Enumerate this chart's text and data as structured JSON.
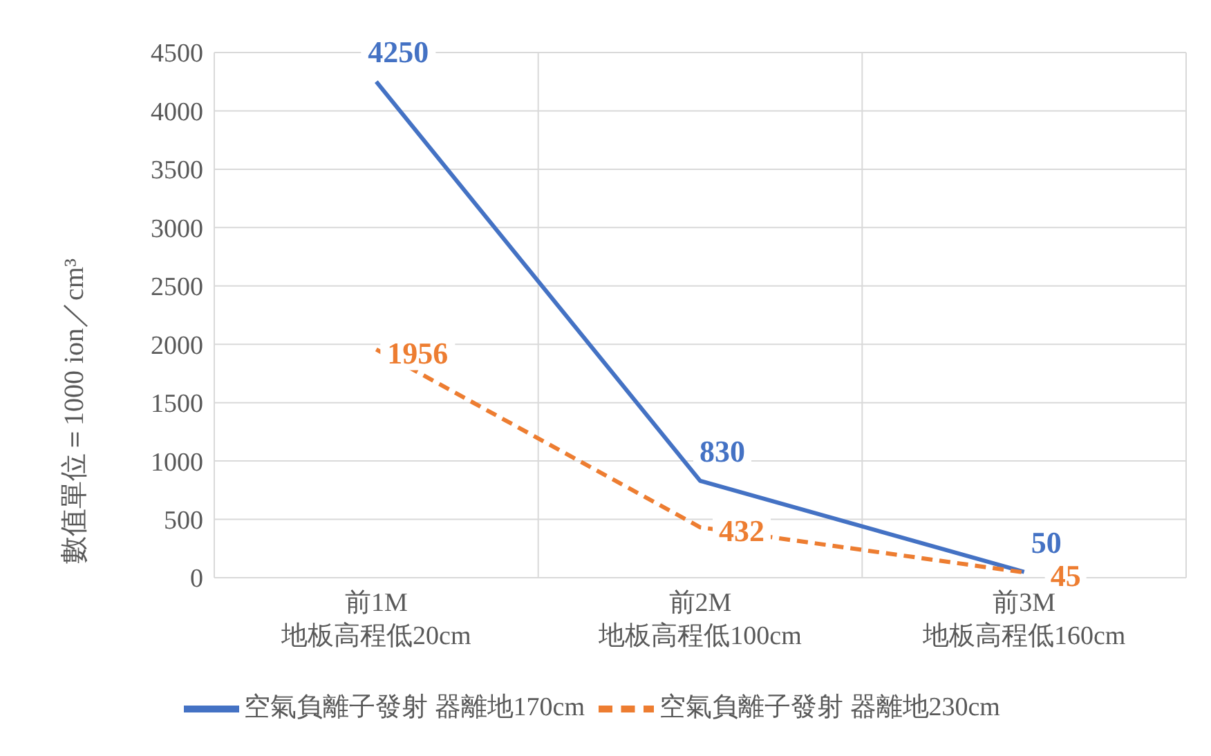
{
  "chart_data": {
    "type": "line",
    "ylabel": "數值單位＝1000 ion／cm³",
    "categories": [
      "前1M\n地板高程低20cm",
      "前2M\n地板高程低100cm",
      "前3M\n地板高程低160cm"
    ],
    "series": [
      {
        "name": "空氣負離子發射 器離地170cm",
        "color": "#4472c4",
        "values": [
          4250,
          830,
          50
        ],
        "line_style": "solid"
      },
      {
        "name": "空氣負離子發射 器離地230cm",
        "color": "#ed7d31",
        "values": [
          1956,
          432,
          45
        ],
        "line_style": "dashed"
      }
    ],
    "ylim": [
      0,
      4500
    ],
    "yticks": [
      0,
      500,
      1000,
      1500,
      2000,
      2500,
      3000,
      3500,
      4000,
      4500
    ],
    "grid": true,
    "legend": "bottom",
    "data_labels": true,
    "marker": "none"
  }
}
